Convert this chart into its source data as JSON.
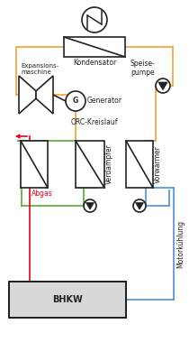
{
  "bg_color": "#ffffff",
  "orange": "#f5a032",
  "green": "#5aaa32",
  "red": "#e8001c",
  "blue": "#4a90d9",
  "black": "#222222",
  "labels": {
    "kondensator": "Kondensator",
    "expansionsmaschine": "Expansions-\nmaschine",
    "generator": "Generator",
    "orc": "ORC-Kreislauf",
    "speisepumpe": "Speise-\npumpe",
    "verdampfer": "Verdampfer",
    "vorwaermer": "Vorwärmer",
    "abgas": "Abgas",
    "bhkw": "BHKW",
    "motorkuehlung": "Motorkühlung"
  },
  "lw": 1.2,
  "fs": 5.5
}
